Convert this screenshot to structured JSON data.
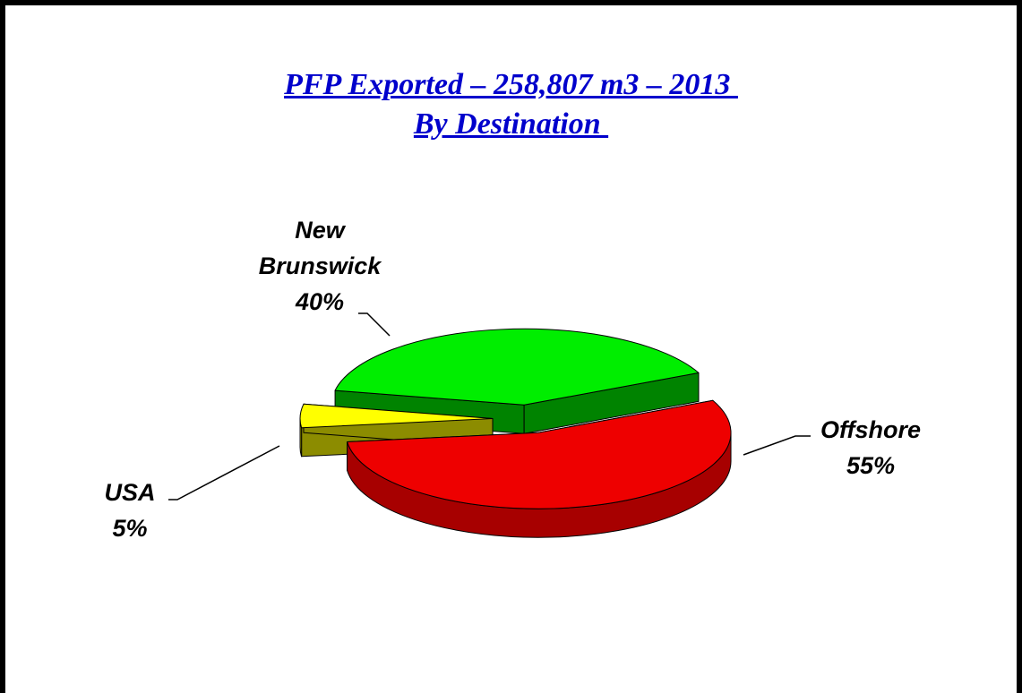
{
  "chart_data": {
    "type": "pie",
    "title": [
      "PFP Exported – 258,807 m3 – 2013 ",
      "By Destination "
    ],
    "categories": [
      "Offshore",
      "USA",
      "New Brunswick"
    ],
    "values": [
      55,
      5,
      40
    ],
    "value_labels": [
      "55%",
      "5%",
      "40%"
    ],
    "colors": [
      "#ee0000",
      "#ffff00",
      "#00ee00"
    ]
  }
}
